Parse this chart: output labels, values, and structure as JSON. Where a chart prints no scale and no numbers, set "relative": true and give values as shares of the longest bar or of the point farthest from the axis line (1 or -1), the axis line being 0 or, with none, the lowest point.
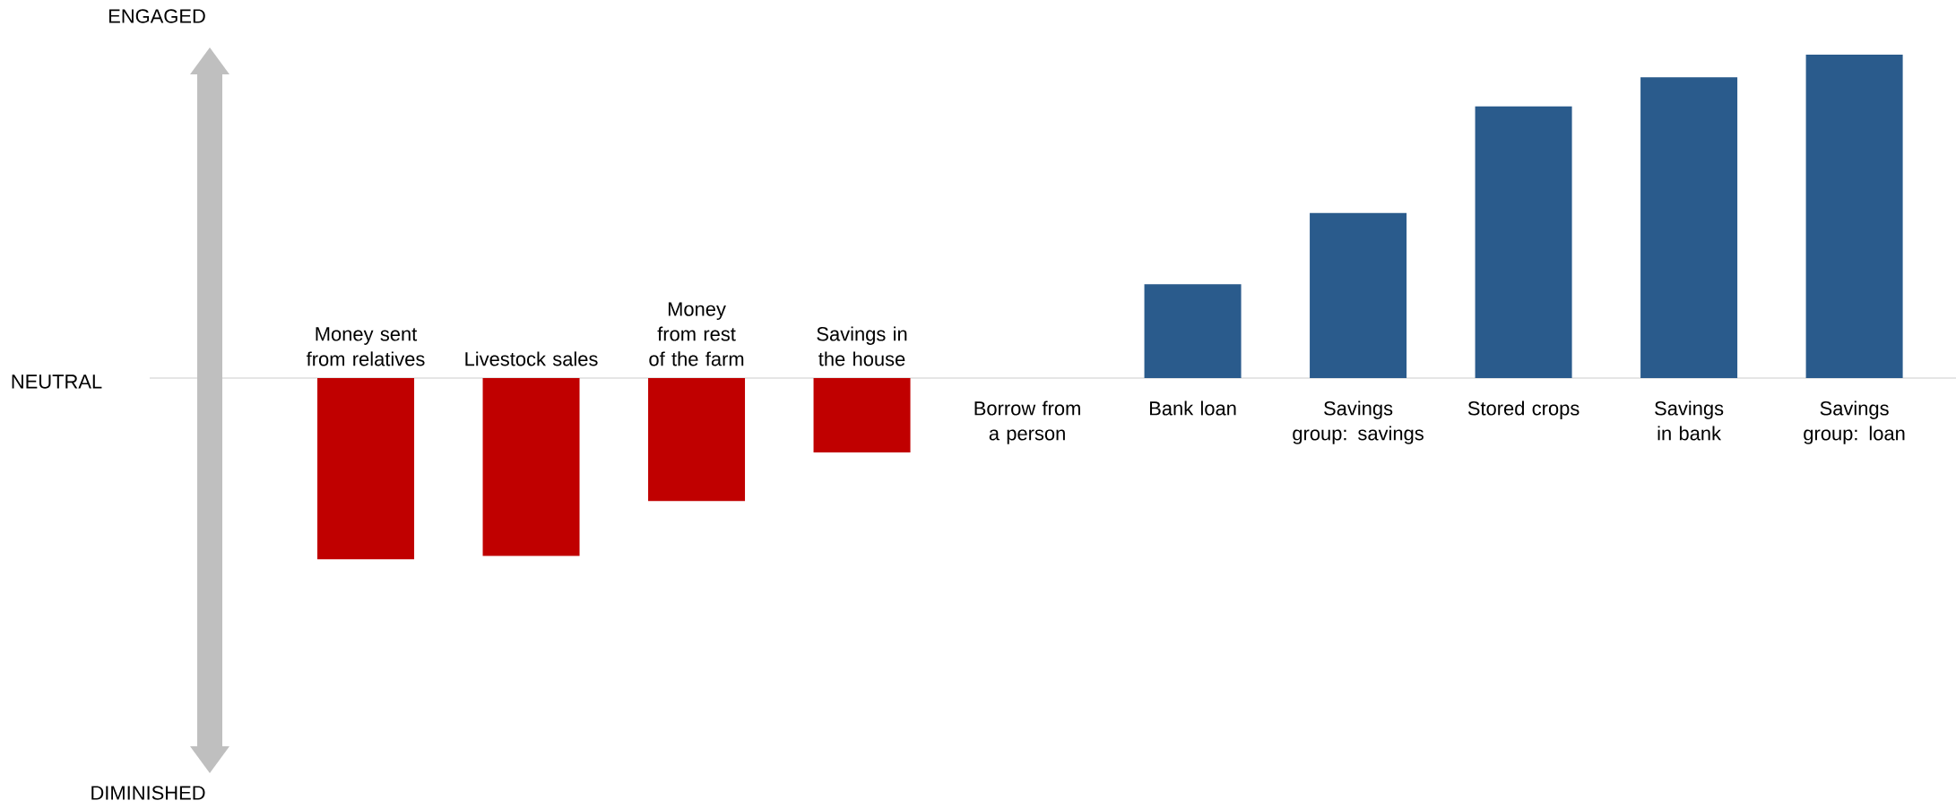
{
  "chart_data": {
    "type": "bar",
    "relative": true,
    "categories": [
      "Money sent from relatives",
      "Livestock sales",
      "Money from rest of the farm",
      "Savings in the house",
      "Borrow from a person",
      "Bank loan",
      "Savings group: savings",
      "Stored crops",
      "Savings in bank",
      "Savings group: loan"
    ],
    "values": [
      -0.56,
      -0.55,
      -0.38,
      -0.23,
      0,
      0.29,
      0.51,
      0.84,
      0.93,
      1
    ],
    "colors": [
      "#c00000",
      "#c00000",
      "#c00000",
      "#c00000",
      "#c00000",
      "#2a5b8c",
      "#2a5b8c",
      "#2a5b8c",
      "#2a5b8c",
      "#2a5b8c"
    ],
    "annotations": [
      "ENGAGED",
      "NEUTRAL",
      "DIMINISHED"
    ]
  }
}
